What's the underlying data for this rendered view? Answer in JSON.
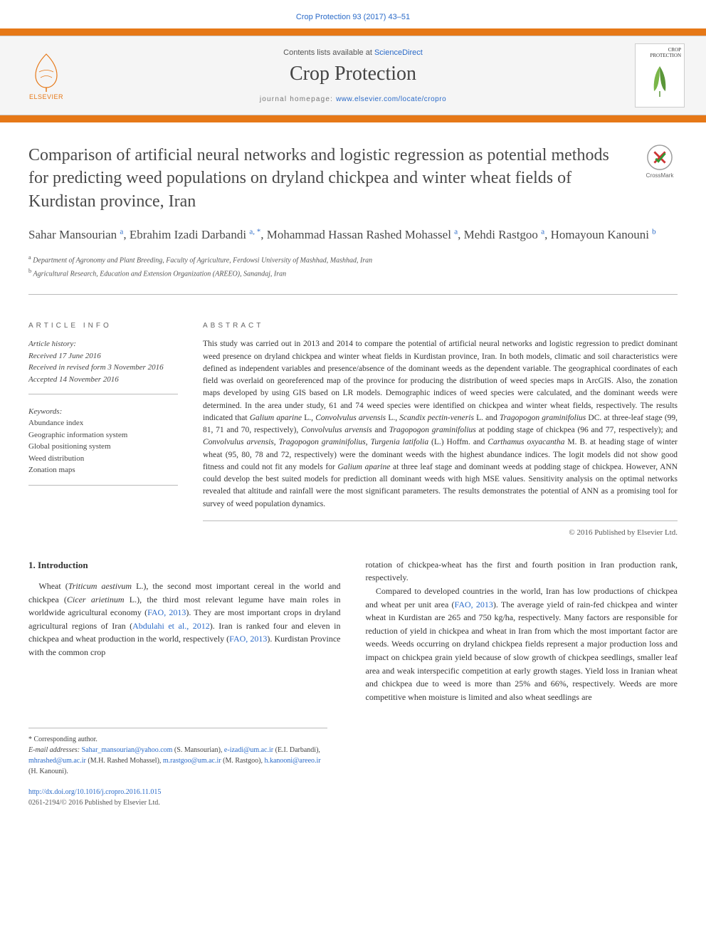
{
  "citation": "Crop Protection 93 (2017) 43–51",
  "header": {
    "contents_prefix": "Contents lists available at ",
    "contents_link": "ScienceDirect",
    "journal_name": "Crop Protection",
    "homepage_prefix": "journal homepage: ",
    "homepage_url": "www.elsevier.com/locate/cropro",
    "publisher_logo_text": "ELSEVIER",
    "cover_title": "CROP PROTECTION"
  },
  "title": "Comparison of artificial neural networks and logistic regression as potential methods for predicting weed populations on dryland chickpea and winter wheat fields of Kurdistan province, Iran",
  "crossmark_label": "CrossMark",
  "authors_html": "Sahar Mansourian <sup>a</sup>, Ebrahim Izadi Darbandi <sup>a, *</sup>, Mohammad Hassan Rashed Mohassel <sup>a</sup>, Mehdi Rastgoo <sup>a</sup>, Homayoun Kanouni <sup>b</sup>",
  "affiliations": {
    "a": "Department of Agronomy and Plant Breeding, Faculty of Agriculture, Ferdowsi University of Mashhad, Mashhad, Iran",
    "b": "Agricultural Research, Education and Extension Organization (AREEO), Sanandaj, Iran"
  },
  "info": {
    "label": "ARTICLE INFO",
    "history_label": "Article history:",
    "received": "Received 17 June 2016",
    "revised": "Received in revised form 3 November 2016",
    "accepted": "Accepted 14 November 2016",
    "keywords_label": "Keywords:",
    "keywords": [
      "Abundance index",
      "Geographic information system",
      "Global positioning system",
      "Weed distribution",
      "Zonation maps"
    ]
  },
  "abstract": {
    "label": "ABSTRACT",
    "text_html": "This study was carried out in 2013 and 2014 to compare the potential of artificial neural networks and logistic regression to predict dominant weed presence on dryland chickpea and winter wheat fields in Kurdistan province, Iran. In both models, climatic and soil characteristics were defined as independent variables and presence/absence of the dominant weeds as the dependent variable. The geographical coordinates of each field was overlaid on georeferenced map of the province for producing the distribution of weed species maps in ArcGIS. Also, the zonation maps developed by using GIS based on LR models. Demographic indices of weed species were calculated, and the dominant weeds were determined. In the area under study, 61 and 74 weed species were identified on chickpea and winter wheat fields, respectively. The results indicated that <em>Galium aparine</em> L., <em>Convolvulus arvensis</em> L., <em>Scandix pectin-veneris</em> L. and <em>Tragopogon graminifolius</em> DC. at three-leaf stage (99, 81, 71 and 70, respectively), <em>Convolvulus arvensis</em> and <em>Tragopogon graminifolius</em> at podding stage of chickpea (96 and 77, respectively); and <em>Convolvulus arvensis</em>, <em>Tragopogon graminifolius</em>, <em>Turgenia latifolia</em> (L.) Hoffm. and <em>Carthamus oxyacantha</em> M. B. at heading stage of winter wheat (95, 80, 78 and 72, respectively) were the dominant weeds with the highest abundance indices. The logit models did not show good fitness and could not fit any models for <em>Galium aparine</em> at three leaf stage and dominant weeds at podding stage of chickpea. However, ANN could develop the best suited models for prediction all dominant weeds with high MSE values. Sensitivity analysis on the optimal networks revealed that altitude and rainfall were the most significant parameters. The results demonstrates the potential of ANN as a promising tool for survey of weed population dynamics.",
    "copyright": "© 2016 Published by Elsevier Ltd."
  },
  "intro": {
    "heading": "1. Introduction",
    "col1_html": "Wheat (<em>Triticum aestivum</em> L.), the second most important cereal in the world and chickpea (<em>Cicer arietinum</em> L.), the third most relevant legume have main roles in worldwide agricultural economy (<a href='#'>FAO, 2013</a>). They are most important crops in dryland agricultural regions of Iran (<a href='#'>Abdulahi et al., 2012</a>). Iran is ranked four and eleven in chickpea and wheat production in the world, respectively (<a href='#'>FAO, 2013</a>). Kurdistan Province with the common crop",
    "col2_html": "rotation of chickpea-wheat has the first and fourth position in Iran production rank, respectively.<br><span style='display:inline-block;text-indent:1.2em'>Compared to developed countries in the world, Iran has low productions of chickpea and wheat per unit area (<a href='#'>FAO, 2013</a>). The average yield of rain-fed chickpea and winter wheat in Kurdistan are 265 and 750 kg/ha, respectively. Many factors are responsible for reduction of yield in chickpea and wheat in Iran from which the most important factor are weeds. Weeds occurring on dryland chickpea fields represent a major production loss and impact on chickpea grain yield because of slow growth of chickpea seedlings, smaller leaf area and weak interspecific competition at early growth stages. Yield loss in Iranian wheat and chickpea due to weed is more than 25% and 66%, respectively. Weeds are more competitive when moisture is limited and also wheat seedlings are</span>"
  },
  "footnotes": {
    "corresponding": "* Corresponding author.",
    "email_label": "E-mail addresses:",
    "emails_html": "<a href='#'>Sahar_mansourian@yahoo.com</a> (S. Mansourian), <a href='#'>e-izadi@um.ac.ir</a> (E.I. Darbandi), <a href='#'>mhrashed@um.ac.ir</a> (M.H. Rashed Mohassel), <a href='#'>m.rastgoo@um.ac.ir</a> (M. Rastgoo), <a href='#'>h.kanooni@areeo.ir</a> (H. Kanouni)."
  },
  "footer": {
    "doi": "http://dx.doi.org/10.1016/j.cropro.2016.11.015",
    "issn_line": "0261-2194/© 2016 Published by Elsevier Ltd."
  },
  "colors": {
    "link": "#2a6ac8",
    "accent": "#e67817",
    "text": "#333333",
    "muted": "#666666"
  }
}
